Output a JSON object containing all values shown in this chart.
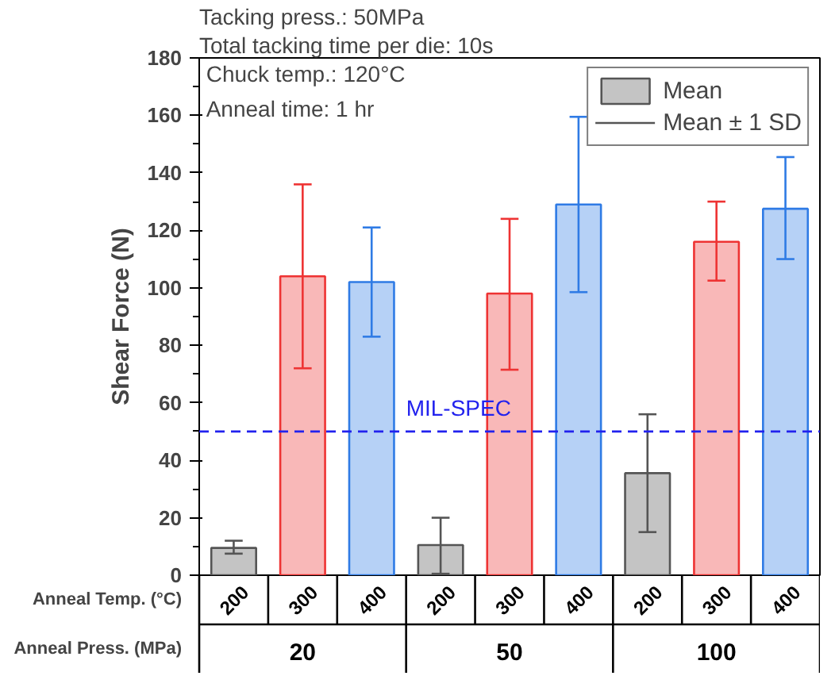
{
  "chart_data": {
    "type": "bar",
    "categories": [
      "200",
      "300",
      "400",
      "200",
      "300",
      "400",
      "200",
      "300",
      "400"
    ],
    "xlabel": "Anneal Temp. (°C)",
    "ylabel": "Shear Force (N)",
    "series": [
      {
        "name": "Mean",
        "colors": [
          "#555555",
          "#ee3333",
          "#2f7be5",
          "#555555",
          "#ee3333",
          "#2f7be5",
          "#555555",
          "#ee3333",
          "#2f7be5"
        ],
        "values": [
          9.5,
          104,
          102,
          10.5,
          98,
          129,
          35.5,
          116,
          127.5
        ],
        "errors": [
          [
            7.5,
            12
          ],
          [
            72,
            136
          ],
          [
            83,
            121
          ],
          [
            0.5,
            20
          ],
          [
            71.5,
            124
          ],
          [
            98.5,
            159.5
          ],
          [
            15,
            56
          ],
          [
            102.5,
            130
          ],
          [
            110,
            145.5
          ]
        ]
      }
    ],
    "ylim": [
      0,
      180
    ],
    "yticks": [
      0,
      20,
      40,
      60,
      80,
      100,
      120,
      140,
      160,
      180
    ],
    "ref_lines": [
      {
        "axis": "y",
        "value": 50,
        "label": "MIL-SPEC",
        "color": "#2222ee",
        "line_style": "dashed"
      }
    ],
    "legend": "top right",
    "grid": false,
    "annotations": [
      "Tacking press.: 50MPa",
      "Total tacking time per die: 10s",
      "Chuck temp.: 120°C",
      "Anneal time: 1 hr",
      "Mean ± 1 SD",
      "Anneal Press. (MPa)",
      "20",
      "50",
      "100"
    ]
  }
}
